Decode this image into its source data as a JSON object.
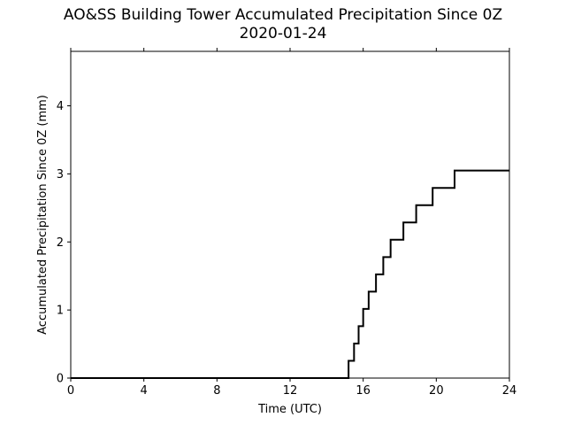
{
  "chart_data": {
    "type": "line",
    "style": "step",
    "title": "AO&SS Building Tower Accumulated Precipitation Since 0Z",
    "subtitle": "2020-01-24",
    "xlabel": "Time (UTC)",
    "ylabel": "Accumulated Precipitation Since 0Z (mm)",
    "xlim": [
      0,
      24
    ],
    "ylim": [
      0,
      4.8
    ],
    "xticks": [
      0,
      4,
      8,
      12,
      16,
      20,
      24
    ],
    "yticks": [
      0,
      1,
      2,
      3,
      4
    ],
    "grid": false,
    "line_color": "#000000",
    "series": [
      {
        "x": [
          0,
          15.2,
          15.5,
          15.75,
          16.0,
          16.3,
          16.7,
          17.1,
          17.5,
          18.2,
          18.9,
          19.8,
          21.0,
          24
        ],
        "y": [
          0,
          0.254,
          0.508,
          0.762,
          1.016,
          1.27,
          1.524,
          1.778,
          2.032,
          2.286,
          2.54,
          2.794,
          3.048,
          3.048
        ]
      }
    ]
  }
}
